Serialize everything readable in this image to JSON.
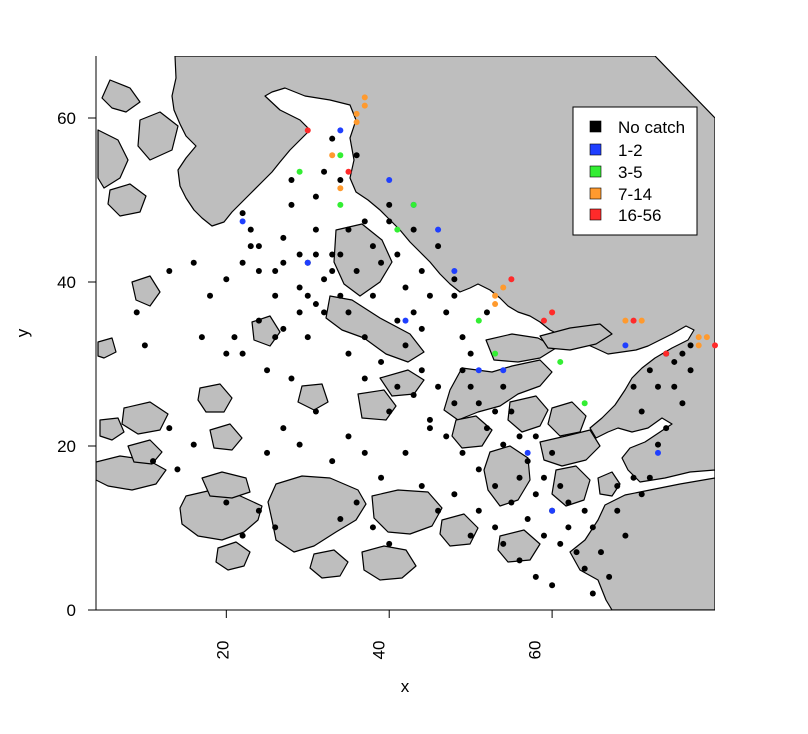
{
  "chart_data": {
    "type": "scatter",
    "title": "",
    "xlabel": "x",
    "ylabel": "y",
    "xlim": [
      4,
      80
    ],
    "ylim": [
      0,
      67
    ],
    "x_ticks": [
      "20",
      "40",
      "60"
    ],
    "y_ticks": [
      "0",
      "20",
      "40",
      "60"
    ],
    "grid": false,
    "legend_position": "top-right",
    "land_color": "#bebebe",
    "series": [
      {
        "name": "No catch",
        "color": "#000000",
        "points": [
          [
            9,
            36
          ],
          [
            10,
            32
          ],
          [
            13,
            41
          ],
          [
            16,
            42
          ],
          [
            17,
            33
          ],
          [
            18,
            38
          ],
          [
            20,
            31
          ],
          [
            20,
            40
          ],
          [
            21,
            33
          ],
          [
            22,
            31
          ],
          [
            22,
            42
          ],
          [
            22,
            48
          ],
          [
            23,
            46
          ],
          [
            23,
            44
          ],
          [
            24,
            44
          ],
          [
            24,
            41
          ],
          [
            24,
            35
          ],
          [
            25,
            29
          ],
          [
            26,
            38
          ],
          [
            26,
            33
          ],
          [
            26,
            41
          ],
          [
            27,
            42
          ],
          [
            27,
            34
          ],
          [
            27,
            45
          ],
          [
            28,
            52
          ],
          [
            28,
            49
          ],
          [
            28,
            28
          ],
          [
            29,
            43
          ],
          [
            29,
            39
          ],
          [
            29,
            36
          ],
          [
            30,
            42
          ],
          [
            30,
            38
          ],
          [
            30,
            33
          ],
          [
            31,
            46
          ],
          [
            31,
            50
          ],
          [
            31,
            43
          ],
          [
            31,
            37
          ],
          [
            32,
            40
          ],
          [
            32,
            53
          ],
          [
            32,
            36
          ],
          [
            33,
            43
          ],
          [
            33,
            57
          ],
          [
            33,
            41
          ],
          [
            34,
            38
          ],
          [
            34,
            43
          ],
          [
            34,
            52
          ],
          [
            35,
            36
          ],
          [
            35,
            31
          ],
          [
            35,
            46
          ],
          [
            36,
            41
          ],
          [
            36,
            55
          ],
          [
            37,
            47
          ],
          [
            37,
            28
          ],
          [
            37,
            33
          ],
          [
            38,
            44
          ],
          [
            38,
            38
          ],
          [
            39,
            42
          ],
          [
            39,
            30
          ],
          [
            40,
            47
          ],
          [
            40,
            24
          ],
          [
            40,
            49
          ],
          [
            41,
            43
          ],
          [
            41,
            27
          ],
          [
            41,
            35
          ],
          [
            42,
            39
          ],
          [
            42,
            32
          ],
          [
            43,
            46
          ],
          [
            43,
            26
          ],
          [
            43,
            36
          ],
          [
            44,
            34
          ],
          [
            44,
            41
          ],
          [
            44,
            29
          ],
          [
            45,
            38
          ],
          [
            45,
            23
          ],
          [
            46,
            44
          ],
          [
            46,
            27
          ],
          [
            47,
            36
          ],
          [
            47,
            21
          ],
          [
            48,
            38
          ],
          [
            48,
            40
          ],
          [
            48,
            25
          ],
          [
            49,
            33
          ],
          [
            49,
            29
          ],
          [
            49,
            19
          ],
          [
            50,
            31
          ],
          [
            50,
            27
          ],
          [
            51,
            25
          ],
          [
            51,
            17
          ],
          [
            52,
            36
          ],
          [
            52,
            22
          ],
          [
            53,
            24
          ],
          [
            53,
            15
          ],
          [
            54,
            27
          ],
          [
            54,
            20
          ],
          [
            55,
            24
          ],
          [
            55,
            13
          ],
          [
            56,
            21
          ],
          [
            56,
            16
          ],
          [
            57,
            18
          ],
          [
            57,
            11
          ],
          [
            58,
            21
          ],
          [
            58,
            14
          ],
          [
            59,
            16
          ],
          [
            59,
            9
          ],
          [
            60,
            12
          ],
          [
            60,
            19
          ],
          [
            61,
            15
          ],
          [
            61,
            8
          ],
          [
            62,
            10
          ],
          [
            62,
            13
          ],
          [
            63,
            7
          ],
          [
            64,
            12
          ],
          [
            64,
            5
          ],
          [
            65,
            10
          ],
          [
            65,
            2
          ],
          [
            66,
            7
          ],
          [
            67,
            4
          ],
          [
            68,
            12
          ],
          [
            68,
            15
          ],
          [
            69,
            9
          ],
          [
            70,
            16
          ],
          [
            70,
            27
          ],
          [
            71,
            14
          ],
          [
            71,
            24
          ],
          [
            72,
            29
          ],
          [
            72,
            16
          ],
          [
            73,
            20
          ],
          [
            73,
            27
          ],
          [
            74,
            22
          ],
          [
            74,
            31
          ],
          [
            75,
            30
          ],
          [
            75,
            27
          ],
          [
            76,
            31
          ],
          [
            76,
            25
          ],
          [
            77,
            32
          ],
          [
            77,
            29
          ],
          [
            27,
            22
          ],
          [
            25,
            19
          ],
          [
            29,
            20
          ],
          [
            31,
            24
          ],
          [
            33,
            18
          ],
          [
            35,
            21
          ],
          [
            37,
            19
          ],
          [
            39,
            16
          ],
          [
            42,
            19
          ],
          [
            44,
            15
          ],
          [
            45,
            22
          ],
          [
            46,
            12
          ],
          [
            48,
            14
          ],
          [
            50,
            9
          ],
          [
            51,
            12
          ],
          [
            53,
            10
          ],
          [
            54,
            8
          ],
          [
            56,
            6
          ],
          [
            58,
            4
          ],
          [
            60,
            3
          ],
          [
            34,
            11
          ],
          [
            36,
            13
          ],
          [
            38,
            10
          ],
          [
            40,
            8
          ],
          [
            20,
            13
          ],
          [
            22,
            9
          ],
          [
            24,
            12
          ],
          [
            26,
            10
          ],
          [
            16,
            20
          ],
          [
            13,
            22
          ],
          [
            11,
            18
          ],
          [
            14,
            17
          ]
        ]
      },
      {
        "name": "1-2",
        "color": "#1f3fff",
        "points": [
          [
            22,
            47
          ],
          [
            30,
            42
          ],
          [
            34,
            58
          ],
          [
            40,
            52
          ],
          [
            43,
            49
          ],
          [
            46,
            46
          ],
          [
            48,
            41
          ],
          [
            42,
            35
          ],
          [
            51,
            29
          ],
          [
            54,
            29
          ],
          [
            57,
            19
          ],
          [
            60,
            12
          ],
          [
            69,
            32
          ],
          [
            73,
            19
          ]
        ]
      },
      {
        "name": "3-5",
        "color": "#33ee33",
        "points": [
          [
            29,
            53
          ],
          [
            34,
            55
          ],
          [
            34,
            49
          ],
          [
            41,
            46
          ],
          [
            43,
            49
          ],
          [
            51,
            35
          ],
          [
            53,
            31
          ],
          [
            61,
            30
          ],
          [
            64,
            25
          ]
        ]
      },
      {
        "name": "7-14",
        "color": "#ff9a2e",
        "points": [
          [
            33,
            55
          ],
          [
            34,
            51
          ],
          [
            36,
            59
          ],
          [
            36,
            60
          ],
          [
            37,
            61
          ],
          [
            37,
            62
          ],
          [
            53,
            37
          ],
          [
            53,
            38
          ],
          [
            54,
            39
          ],
          [
            60,
            36
          ],
          [
            69,
            35
          ],
          [
            71,
            35
          ],
          [
            78,
            32
          ],
          [
            78,
            33
          ],
          [
            79,
            33
          ]
        ]
      },
      {
        "name": "16-56",
        "color": "#ff2a2a",
        "points": [
          [
            30,
            58
          ],
          [
            35,
            53
          ],
          [
            55,
            40
          ],
          [
            59,
            35
          ],
          [
            60,
            36
          ],
          [
            70,
            35
          ],
          [
            74,
            31
          ],
          [
            80,
            32
          ]
        ]
      }
    ]
  }
}
